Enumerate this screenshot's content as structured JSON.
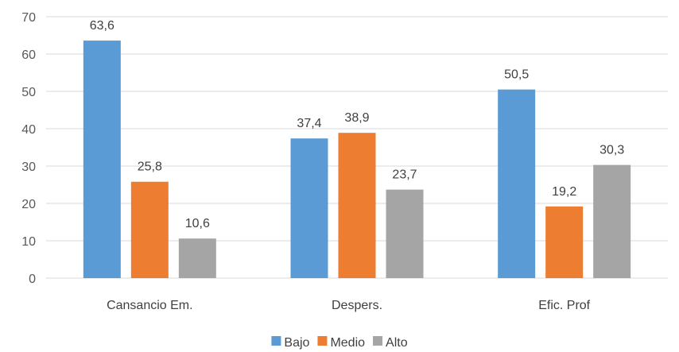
{
  "chart_data": {
    "type": "bar",
    "title": "",
    "xlabel": "",
    "ylabel": "",
    "categories": [
      "Cansancio Em.",
      "Despers.",
      "Efic. Prof"
    ],
    "series": [
      {
        "name": "Bajo",
        "color": "#5b9bd5",
        "values": [
          63.6,
          37.4,
          50.5
        ]
      },
      {
        "name": "Medio",
        "color": "#ed7d31",
        "values": [
          25.8,
          38.9,
          19.2
        ]
      },
      {
        "name": "Alto",
        "color": "#a5a5a5",
        "values": [
          10.6,
          23.7,
          30.3
        ]
      }
    ],
    "ylim": [
      0,
      70
    ],
    "yticks": [
      0,
      10,
      20,
      30,
      40,
      50,
      60,
      70
    ],
    "data_labels": [
      [
        "63,6",
        "37,4",
        "50,5"
      ],
      [
        "25,8",
        "38,9",
        "19,2"
      ],
      [
        "10,6",
        "23,7",
        "30,3"
      ]
    ],
    "grid": true,
    "legend_position": "bottom"
  }
}
